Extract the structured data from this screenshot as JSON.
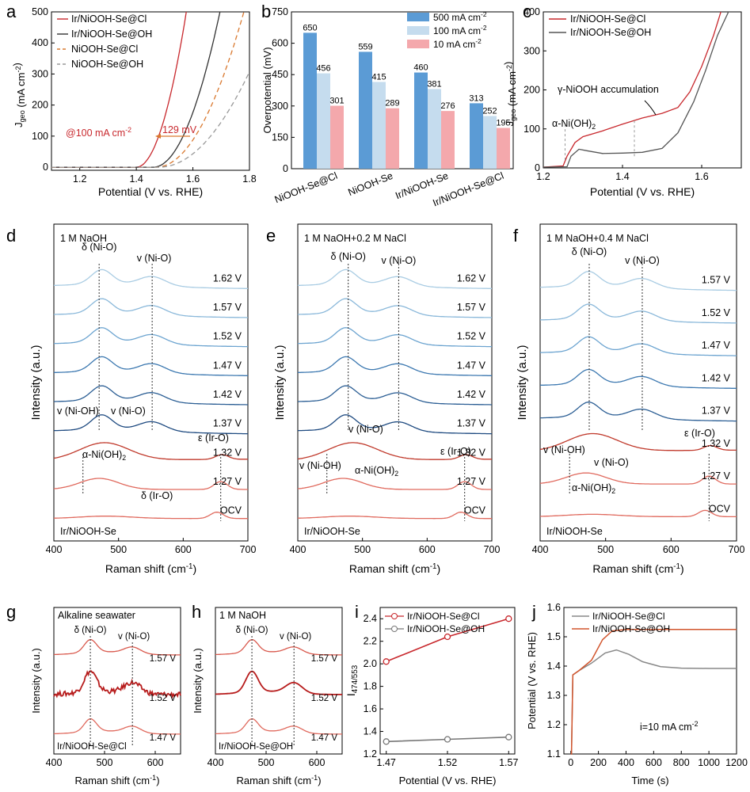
{
  "figure": {
    "panel_letters": [
      "a",
      "b",
      "c",
      "d",
      "e",
      "f",
      "g",
      "h",
      "i",
      "j"
    ],
    "ocr_note": "text values exactly as printed"
  },
  "chart_data": [
    {
      "id": "a",
      "type": "line",
      "xlabel": "Potential (V vs. RHE)",
      "ylabel_main": "J",
      "ylabel_sub": "geo",
      "ylabel_unit": " (mA cm",
      "ylabel_sup": "-2",
      "ylabel_close": ")",
      "xlim": [
        1.1,
        1.8
      ],
      "ylim": [
        -10,
        500
      ],
      "xticks": [
        "1.2",
        "1.4",
        "1.6",
        "1.8"
      ],
      "yticks": [
        "0",
        "100",
        "200",
        "300",
        "400",
        "500"
      ],
      "legend": [
        "Ir/NiOOH-Se@Cl",
        "Ir/NiOOH-Se@OH",
        "NiOOH-Se@Cl",
        "NiOOH-Se@OH"
      ],
      "annotation": "@100 mA cm",
      "annotation_sup": "-2",
      "annotation2": "129 mV",
      "series": [
        {
          "name": "Ir/NiOOH-Se@Cl",
          "color": "#c8282d",
          "dash": "",
          "onset": 1.4,
          "k": 1600,
          "p": 2.0
        },
        {
          "name": "Ir/NiOOH-Se@OH",
          "color": "#333333",
          "dash": "",
          "onset": 1.46,
          "k": 900,
          "p": 2.0
        },
        {
          "name": "NiOOH-Se@Cl",
          "color": "#d9782e",
          "dash": "6,4",
          "onset": 1.47,
          "k": 520,
          "p": 2.0
        },
        {
          "name": "NiOOH-Se@OH",
          "color": "#999999",
          "dash": "6,4",
          "onset": 1.48,
          "k": 300,
          "p": 2.0
        }
      ]
    },
    {
      "id": "b",
      "type": "bar",
      "ylabel": "Overpotential (mV)",
      "ylim": [
        0,
        750
      ],
      "yticks": [
        "0",
        "150",
        "300",
        "450",
        "600",
        "750"
      ],
      "categories": [
        "NiOOH-Se@Cl",
        "NiOOH-Se",
        "Ir/NiOOH-Se",
        "Ir/NiOOH-Se@Cl"
      ],
      "legend_suffix": " cm",
      "legend_sup": "-2",
      "series": [
        {
          "name": "500 mA",
          "color": "#5b9bd5",
          "values": [
            650,
            559,
            460,
            313
          ]
        },
        {
          "name": "100 mA",
          "color": "#c5dcee",
          "values": [
            456,
            415,
            381,
            252
          ]
        },
        {
          "name": "10 mA",
          "color": "#f4a8ac",
          "values": [
            301,
            289,
            276,
            195
          ]
        }
      ]
    },
    {
      "id": "c",
      "type": "line",
      "xlabel": "Potential (V vs. RHE)",
      "ylabel_main": "J",
      "ylabel_sub": "geo",
      "ylabel_unit": " (mA cm",
      "ylabel_sup": "-2",
      "ylabel_close": ")",
      "xlim": [
        1.2,
        1.7
      ],
      "ylim": [
        0,
        400
      ],
      "xticks": [
        "1.2",
        "1.4",
        "1.6"
      ],
      "yticks": [
        "0",
        "100",
        "200",
        "300",
        "400"
      ],
      "legend": [
        "Ir/NiOOH-Se@Cl",
        "Ir/NiOOH-Se@OH"
      ],
      "annotation": "γ-NiOOH accumulation",
      "annotation2": "α-Ni(OH)",
      "annotation2_sub": "2",
      "series": [
        {
          "name": "Ir/NiOOH-Se@Cl",
          "color": "#c8282d",
          "points": [
            [
              1.2,
              2
            ],
            [
              1.25,
              5
            ],
            [
              1.26,
              30
            ],
            [
              1.28,
              65
            ],
            [
              1.3,
              80
            ],
            [
              1.35,
              95
            ],
            [
              1.4,
              112
            ],
            [
              1.45,
              128
            ],
            [
              1.5,
              140
            ],
            [
              1.54,
              155
            ],
            [
              1.57,
              195
            ],
            [
              1.6,
              260
            ],
            [
              1.63,
              340
            ],
            [
              1.65,
              405
            ]
          ]
        },
        {
          "name": "Ir/NiOOH-Se@OH",
          "color": "#555555",
          "points": [
            [
              1.2,
              2
            ],
            [
              1.26,
              3
            ],
            [
              1.27,
              30
            ],
            [
              1.29,
              48
            ],
            [
              1.31,
              44
            ],
            [
              1.35,
              37
            ],
            [
              1.4,
              38
            ],
            [
              1.45,
              40
            ],
            [
              1.5,
              50
            ],
            [
              1.54,
              90
            ],
            [
              1.58,
              170
            ],
            [
              1.61,
              250
            ],
            [
              1.64,
              340
            ],
            [
              1.67,
              405
            ]
          ]
        }
      ]
    },
    {
      "id": "d",
      "type": "line",
      "title": "1 M NaOH",
      "xlabel": "Raman shift  (cm",
      "xlabel_sup": "-1",
      "xlabel_close": ")",
      "ylabel": "Intensity (a.u.)",
      "xlim": [
        400,
        700
      ],
      "xticks": [
        "400",
        "500",
        "600",
        "700"
      ],
      "labels": [
        "δ (Ni-O)",
        "v (Ni-O)",
        "v (Ni-OH)",
        "v (Ni-O)",
        "α-Ni(OH)",
        "ε (Ir-O)",
        "δ (Ir-O)"
      ],
      "label_sub": "2",
      "sample": "Ir/NiOOH-Se",
      "potentials": [
        "1.62 V",
        "1.57 V",
        "1.52 V",
        "1.47 V",
        "1.42 V",
        "1.37 V",
        "1.32 V",
        "1.27 V",
        "OCV"
      ]
    },
    {
      "id": "e",
      "type": "line",
      "title": "1 M NaOH+0.2 M NaCl",
      "xlabel": "Raman shift  (cm",
      "xlabel_sup": "-1",
      "xlabel_close": ")",
      "ylabel": "Intensity (a.u.)",
      "xlim": [
        400,
        700
      ],
      "xticks": [
        "400",
        "500",
        "600",
        "700"
      ],
      "labels": [
        "δ (Ni-O)",
        "v (Ni-O)",
        "v (Ni-O)",
        "v (Ni-OH)",
        "α-Ni(OH)",
        "ε (Ir-O)"
      ],
      "label_sub": "2",
      "sample": "Ir/NiOOH-Se",
      "potentials": [
        "1.62 V",
        "1.57 V",
        "1.52 V",
        "1.47 V",
        "1.42 V",
        "1.37 V",
        "1.32 V",
        "1.27 V",
        "OCV"
      ]
    },
    {
      "id": "f",
      "type": "line",
      "title": "1 M NaOH+0.4 M NaCl",
      "xlabel": "Raman shift  (cm",
      "xlabel_sup": "-1",
      "xlabel_close": ")",
      "ylabel": "Intensity (a.u.)",
      "xlim": [
        400,
        700
      ],
      "xticks": [
        "400",
        "500",
        "600",
        "700"
      ],
      "labels": [
        "δ (Ni-O)",
        "v (Ni-O)",
        "v (Ni-OH)",
        "v (Ni-O)",
        "α-Ni(OH)",
        "ε (Ir-O)"
      ],
      "label_sub": "2",
      "sample": "Ir/NiOOH-Se",
      "potentials": [
        "1.57 V",
        "1.52 V",
        "1.47 V",
        "1.42 V",
        "1.37 V",
        "1.32 V",
        "1.27 V",
        "OCV"
      ]
    },
    {
      "id": "g",
      "type": "line",
      "title": "Alkaline seawater",
      "xlabel": "Raman shift  (cm",
      "xlabel_sup": "-1",
      "xlabel_close": ")",
      "ylabel": "Intensity (a.u.)",
      "xlim": [
        400,
        650
      ],
      "xticks": [
        "400",
        "500",
        "600"
      ],
      "labels": [
        "δ (Ni-O)",
        "v (Ni-O)"
      ],
      "sample": "Ir/NiOOH-Se@Cl",
      "potentials": [
        "1.57 V",
        "1.52 V",
        "1.47 V"
      ]
    },
    {
      "id": "h",
      "type": "line",
      "title": "1 M NaOH",
      "xlabel": "Raman shift  (cm",
      "xlabel_sup": "-1",
      "xlabel_close": ")",
      "ylabel": "Intensity (a.u.)",
      "xlim": [
        400,
        650
      ],
      "xticks": [
        "400",
        "500",
        "600"
      ],
      "labels": [
        "δ (Ni-O)",
        "v (Ni-O)"
      ],
      "sample": "Ir/NiOOH-Se@OH",
      "potentials": [
        "1.57 V",
        "1.52 V",
        "1.47 V"
      ]
    },
    {
      "id": "i",
      "type": "line",
      "xlabel": "Potential (V vs. RHE)",
      "ylabel_main": "I",
      "ylabel_sub": "474/553",
      "xlim": [
        1.465,
        1.575
      ],
      "ylim": [
        1.2,
        2.5
      ],
      "xticks": [
        "1.47",
        "1.52",
        "1.57"
      ],
      "yticks": [
        "1.2",
        "1.4",
        "1.6",
        "1.8",
        "2.0",
        "2.2",
        "2.4"
      ],
      "legend": [
        "Ir/NiOOH-Se@Cl",
        "Ir/NiOOH-Se@OH"
      ],
      "series": [
        {
          "name": "Ir/NiOOH-Se@Cl",
          "color": "#c8282d",
          "x": [
            1.47,
            1.52,
            1.57
          ],
          "y": [
            2.02,
            2.24,
            2.4
          ]
        },
        {
          "name": "Ir/NiOOH-Se@OH",
          "color": "#777777",
          "x": [
            1.47,
            1.52,
            1.57
          ],
          "y": [
            1.31,
            1.33,
            1.35
          ]
        }
      ]
    },
    {
      "id": "j",
      "type": "line",
      "xlabel": "Time (s)",
      "ylabel": "Potential (V vs. RHE)",
      "xlim": [
        -50,
        1200
      ],
      "ylim": [
        1.1,
        1.6
      ],
      "xticks": [
        "0",
        "200",
        "400",
        "600",
        "800",
        "1000",
        "1200"
      ],
      "yticks": [
        "1.1",
        "1.2",
        "1.3",
        "1.4",
        "1.5",
        "1.6"
      ],
      "legend": [
        "Ir/NiOOH-Se@Cl",
        "Ir/NiOOH-Se@OH"
      ],
      "annotation": "i=10 mA cm",
      "annotation_sup": "-2",
      "series": [
        {
          "name": "Ir/NiOOH-Se@Cl",
          "color": "#888888",
          "points": [
            [
              0,
              1.1
            ],
            [
              5,
              1.1
            ],
            [
              15,
              1.37
            ],
            [
              60,
              1.385
            ],
            [
              150,
              1.41
            ],
            [
              250,
              1.445
            ],
            [
              330,
              1.455
            ],
            [
              420,
              1.44
            ],
            [
              520,
              1.415
            ],
            [
              650,
              1.398
            ],
            [
              800,
              1.393
            ],
            [
              1000,
              1.392
            ],
            [
              1200,
              1.392
            ]
          ]
        },
        {
          "name": "Ir/NiOOH-Se@OH",
          "color": "#d2552d",
          "points": [
            [
              0,
              1.1
            ],
            [
              5,
              1.1
            ],
            [
              15,
              1.37
            ],
            [
              60,
              1.385
            ],
            [
              150,
              1.42
            ],
            [
              230,
              1.49
            ],
            [
              300,
              1.52
            ],
            [
              400,
              1.525
            ],
            [
              600,
              1.525
            ],
            [
              1000,
              1.525
            ],
            [
              1200,
              1.525
            ]
          ]
        }
      ]
    }
  ]
}
